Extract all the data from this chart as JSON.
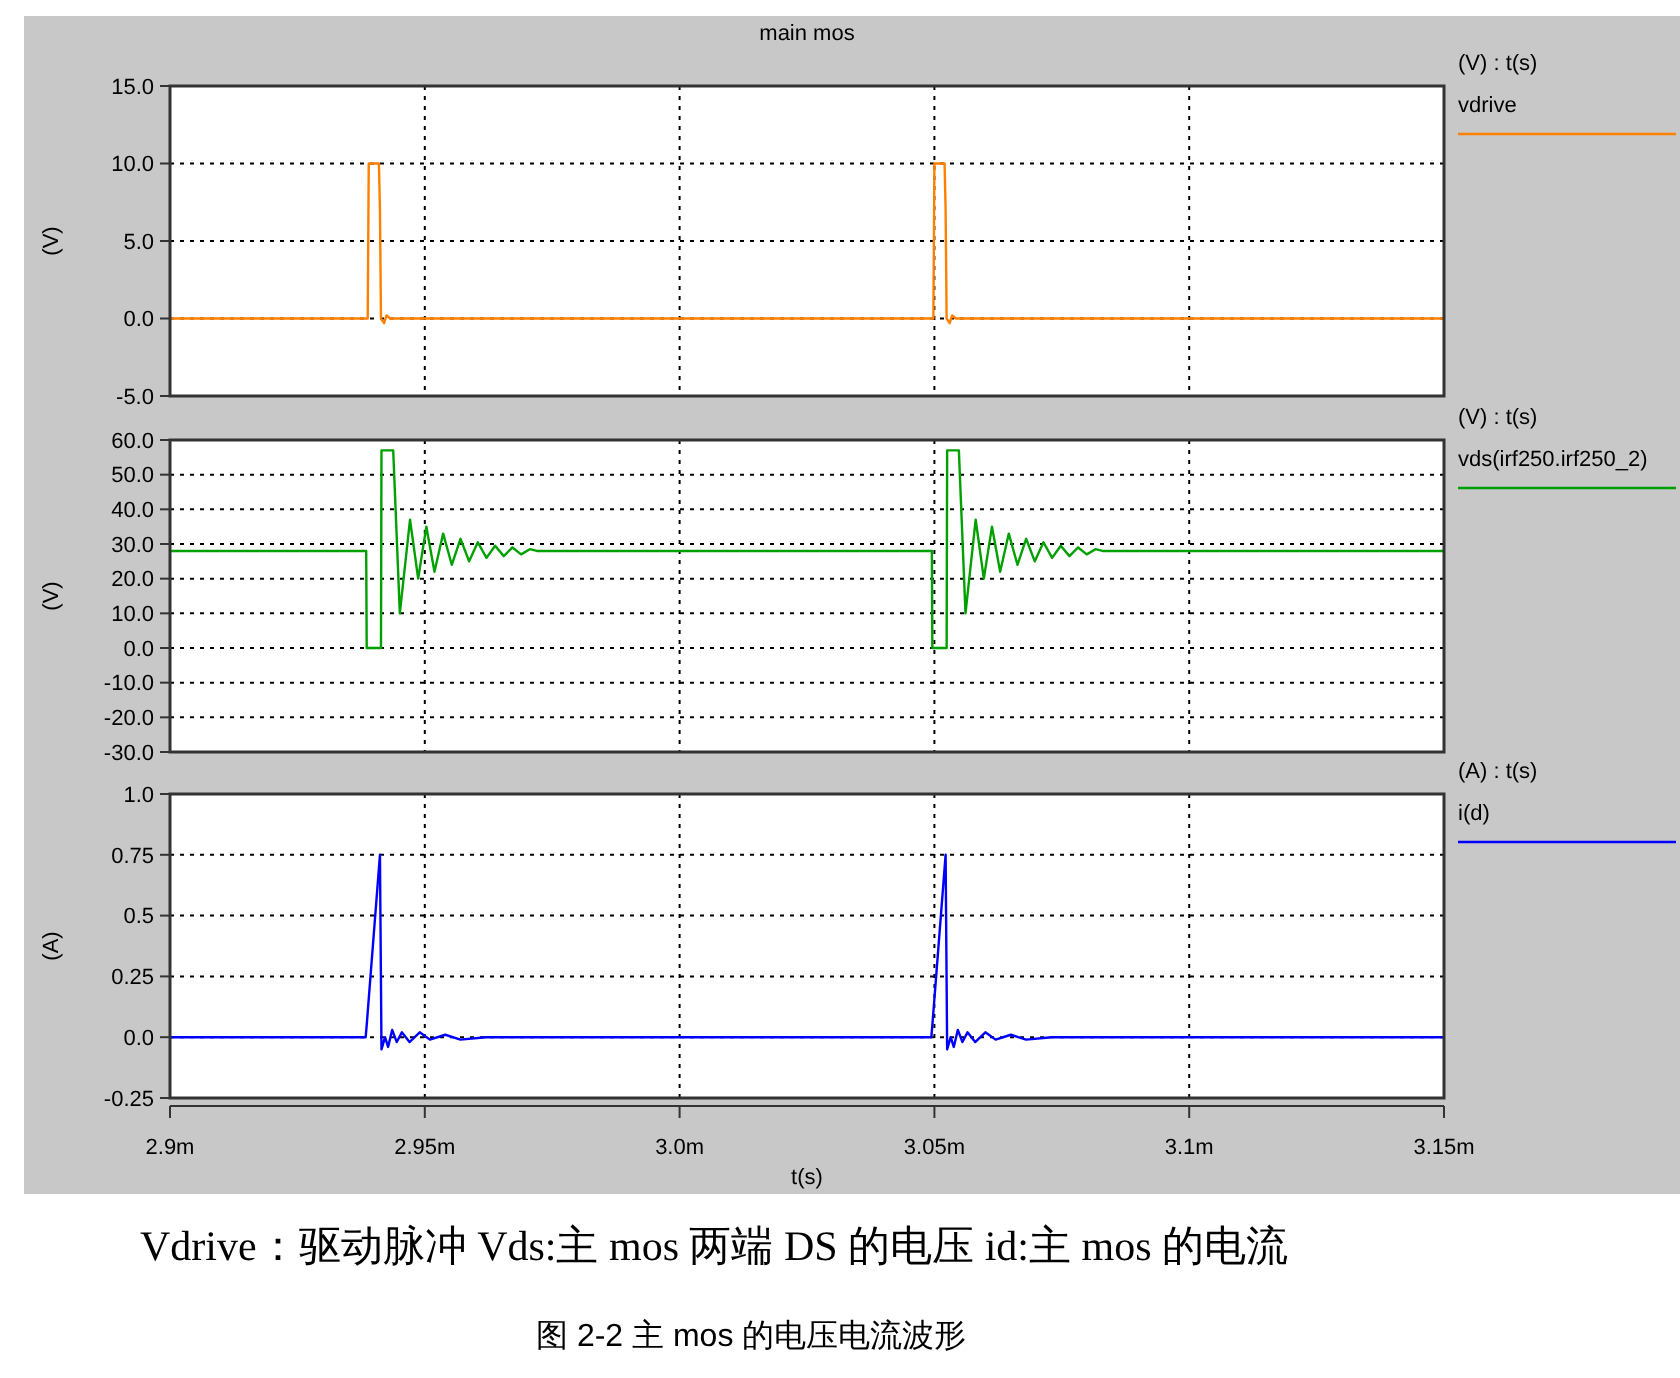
{
  "chart_data": [
    {
      "type": "line",
      "title": "main mos",
      "ylabel": "(V)",
      "legend_title": "(V) : t(s)",
      "legend": "right",
      "grid": true,
      "tick_labels": "y",
      "xlim": [
        2.9,
        3.15
      ],
      "ylim": [
        -5,
        15
      ],
      "xticks": [
        2.9,
        2.95,
        3.0,
        3.05,
        3.1,
        3.15
      ],
      "yticks": [
        {
          "value": 15,
          "label": "15.0"
        },
        {
          "value": 10,
          "label": "10.0"
        },
        {
          "value": 5,
          "label": "5.0"
        },
        {
          "value": 0,
          "label": "0.0"
        },
        {
          "value": -5,
          "label": "-5.0"
        }
      ],
      "series": [
        {
          "name": "vdrive",
          "color": "#ff8000",
          "x": [
            2.9,
            2.9388,
            2.939,
            2.941,
            2.9412,
            2.9414,
            2.942,
            2.9425,
            2.9432,
            3.0498,
            3.05,
            3.052,
            3.0522,
            3.0524,
            3.053,
            3.0535,
            3.0542,
            3.15
          ],
          "values": [
            0,
            0,
            10,
            10,
            7,
            0,
            -0.3,
            0.2,
            0,
            0,
            10,
            10,
            7,
            0,
            -0.3,
            0.2,
            0,
            0
          ]
        }
      ]
    },
    {
      "type": "line",
      "ylabel": "(V)",
      "legend_title": "(V) : t(s)",
      "legend": "right",
      "grid": true,
      "tick_labels": "y",
      "xlim": [
        2.9,
        3.15
      ],
      "ylim": [
        -30,
        60
      ],
      "xticks": [
        2.9,
        2.95,
        3.0,
        3.05,
        3.1,
        3.15
      ],
      "yticks": [
        {
          "value": 60,
          "label": "60.0"
        },
        {
          "value": 50,
          "label": "50.0"
        },
        {
          "value": 40,
          "label": "40.0"
        },
        {
          "value": 30,
          "label": "30.0"
        },
        {
          "value": 20,
          "label": "20.0"
        },
        {
          "value": 10,
          "label": "10.0"
        },
        {
          "value": 0,
          "label": "0.0"
        },
        {
          "value": -10,
          "label": "-10.0"
        },
        {
          "value": -20,
          "label": "-20.0"
        },
        {
          "value": -30,
          "label": "-30.0"
        }
      ],
      "series": [
        {
          "name": "vds(irf250.irf250_2)",
          "color": "#00a000",
          "x": [
            2.9,
            2.9385,
            2.9386,
            2.9414,
            2.9415,
            2.9438,
            2.9451,
            2.9471,
            2.9487,
            2.9503,
            2.9519,
            2.9536,
            2.9553,
            2.957,
            2.9587,
            2.9604,
            2.9621,
            2.9638,
            2.9655,
            2.9672,
            2.9689,
            2.9706,
            2.972,
            3.0495,
            3.0496,
            3.0524,
            3.0525,
            3.0548,
            3.0561,
            3.0581,
            3.0597,
            3.0613,
            3.0629,
            3.0646,
            3.0663,
            3.068,
            3.0697,
            3.0714,
            3.0731,
            3.0748,
            3.0765,
            3.0782,
            3.0799,
            3.0816,
            3.083,
            3.15
          ],
          "values": [
            28,
            28,
            0,
            0,
            57,
            57,
            10,
            37,
            20,
            35,
            22,
            33,
            24,
            31.5,
            25,
            30.5,
            26,
            29.5,
            26.5,
            29,
            27,
            28.5,
            28,
            28,
            0,
            0,
            57,
            57,
            10,
            37,
            20,
            35,
            22,
            33,
            24,
            31.5,
            25,
            30.5,
            26,
            29.5,
            26.5,
            29,
            27,
            28.5,
            28,
            28
          ]
        }
      ]
    },
    {
      "type": "line",
      "ylabel": "(A)",
      "xlabel": "t(s)",
      "legend_title": "(A) : t(s)",
      "legend": "right",
      "grid": true,
      "xlim": [
        2.9,
        3.15
      ],
      "xticks": [
        {
          "value": 2.9,
          "label": "2.9m"
        },
        {
          "value": 2.95,
          "label": "2.95m"
        },
        {
          "value": 3.0,
          "label": "3.0m"
        },
        {
          "value": 3.05,
          "label": "3.05m"
        },
        {
          "value": 3.1,
          "label": "3.1m"
        },
        {
          "value": 3.15,
          "label": "3.15m"
        }
      ],
      "ylim": [
        -0.25,
        1
      ],
      "yticks": [
        {
          "value": 1,
          "label": "1.0"
        },
        0.75,
        0.5,
        0.25,
        {
          "value": 0,
          "label": "0.0"
        },
        -0.25
      ],
      "series": [
        {
          "name": "i(d)",
          "color": "#0000ff",
          "x": [
            2.9,
            2.9384,
            2.9386,
            2.9412,
            2.9415,
            2.9422,
            2.9428,
            2.9436,
            2.9445,
            2.9455,
            2.947,
            2.949,
            2.951,
            2.954,
            2.957,
            2.962,
            3.0494,
            3.0496,
            3.0522,
            3.0525,
            3.0532,
            3.0538,
            3.0546,
            3.0555,
            3.0565,
            3.058,
            3.06,
            3.062,
            3.065,
            3.068,
            3.073,
            3.15
          ],
          "values": [
            0,
            0,
            0.05,
            0.75,
            -0.05,
            0,
            -0.04,
            0.03,
            -0.02,
            0.02,
            -0.02,
            0.02,
            -0.01,
            0.01,
            -0.01,
            0,
            0,
            0.05,
            0.75,
            -0.05,
            0,
            -0.04,
            0.03,
            -0.02,
            0.02,
            -0.02,
            0.02,
            -0.01,
            0.01,
            -0.01,
            0,
            0
          ]
        }
      ],
      "annotations": [
        "Vdrive：驱动脉冲  Vds:主 mos 两端 DS 的电压  id:主 mos 的电流",
        "图  2-2 主 mos 的电压电流波形"
      ]
    }
  ]
}
